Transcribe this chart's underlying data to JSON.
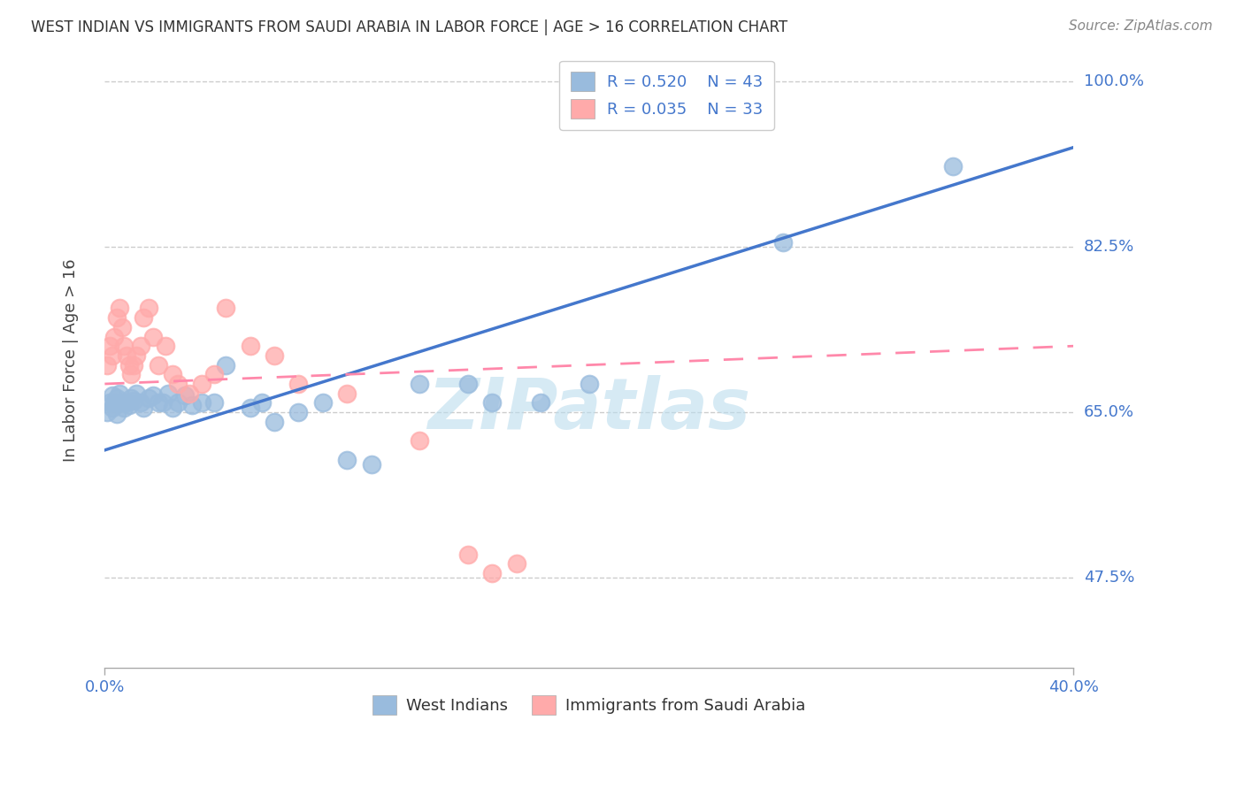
{
  "title": "WEST INDIAN VS IMMIGRANTS FROM SAUDI ARABIA IN LABOR FORCE | AGE > 16 CORRELATION CHART",
  "source": "Source: ZipAtlas.com",
  "ylabel": "In Labor Force | Age > 16",
  "xlim": [
    0.0,
    0.4
  ],
  "ylim": [
    0.38,
    1.03
  ],
  "yticks": [
    0.475,
    0.65,
    0.825,
    1.0
  ],
  "ytick_labels": [
    "47.5%",
    "65.0%",
    "82.5%",
    "100.0%"
  ],
  "xtick_labels": [
    "0.0%",
    "40.0%"
  ],
  "xtick_positions": [
    0.0,
    0.4
  ],
  "legend_r1": "R = 0.520",
  "legend_n1": "N = 43",
  "legend_r2": "R = 0.035",
  "legend_n2": "N = 33",
  "blue_color": "#99BBDD",
  "pink_color": "#FFAAAA",
  "trend_blue": "#4477CC",
  "trend_pink": "#FF88AA",
  "watermark": "ZIPatlas",
  "watermark_color": "#BBDDEE",
  "background_color": "#FFFFFF",
  "grid_color": "#CCCCCC",
  "axis_color": "#AAAAAA",
  "label_color": "#4477CC",
  "west_indians_x": [
    0.001,
    0.002,
    0.003,
    0.003,
    0.004,
    0.005,
    0.005,
    0.006,
    0.007,
    0.008,
    0.009,
    0.01,
    0.011,
    0.012,
    0.013,
    0.015,
    0.016,
    0.018,
    0.02,
    0.022,
    0.024,
    0.026,
    0.028,
    0.03,
    0.033,
    0.036,
    0.04,
    0.045,
    0.05,
    0.06,
    0.065,
    0.07,
    0.08,
    0.09,
    0.1,
    0.11,
    0.13,
    0.15,
    0.16,
    0.18,
    0.2,
    0.28,
    0.35
  ],
  "west_indians_y": [
    0.65,
    0.66,
    0.655,
    0.668,
    0.66,
    0.665,
    0.648,
    0.67,
    0.66,
    0.655,
    0.66,
    0.658,
    0.665,
    0.662,
    0.67,
    0.66,
    0.655,
    0.665,
    0.668,
    0.66,
    0.66,
    0.67,
    0.655,
    0.66,
    0.668,
    0.658,
    0.66,
    0.66,
    0.7,
    0.655,
    0.66,
    0.64,
    0.65,
    0.66,
    0.6,
    0.595,
    0.68,
    0.68,
    0.66,
    0.66,
    0.68,
    0.83,
    0.91
  ],
  "saudi_x": [
    0.001,
    0.002,
    0.003,
    0.004,
    0.005,
    0.006,
    0.007,
    0.008,
    0.009,
    0.01,
    0.011,
    0.012,
    0.013,
    0.015,
    0.016,
    0.018,
    0.02,
    0.022,
    0.025,
    0.028,
    0.03,
    0.035,
    0.04,
    0.045,
    0.05,
    0.06,
    0.07,
    0.08,
    0.1,
    0.13,
    0.15,
    0.16,
    0.17
  ],
  "saudi_y": [
    0.7,
    0.72,
    0.71,
    0.73,
    0.75,
    0.76,
    0.74,
    0.72,
    0.71,
    0.7,
    0.69,
    0.7,
    0.71,
    0.72,
    0.75,
    0.76,
    0.73,
    0.7,
    0.72,
    0.69,
    0.68,
    0.67,
    0.68,
    0.69,
    0.76,
    0.72,
    0.71,
    0.68,
    0.67,
    0.62,
    0.5,
    0.48,
    0.49
  ],
  "blue_trend_x": [
    0.0,
    0.4
  ],
  "blue_trend_y": [
    0.61,
    0.93
  ],
  "pink_trend_x": [
    0.0,
    0.4
  ],
  "pink_trend_y": [
    0.68,
    0.72
  ]
}
